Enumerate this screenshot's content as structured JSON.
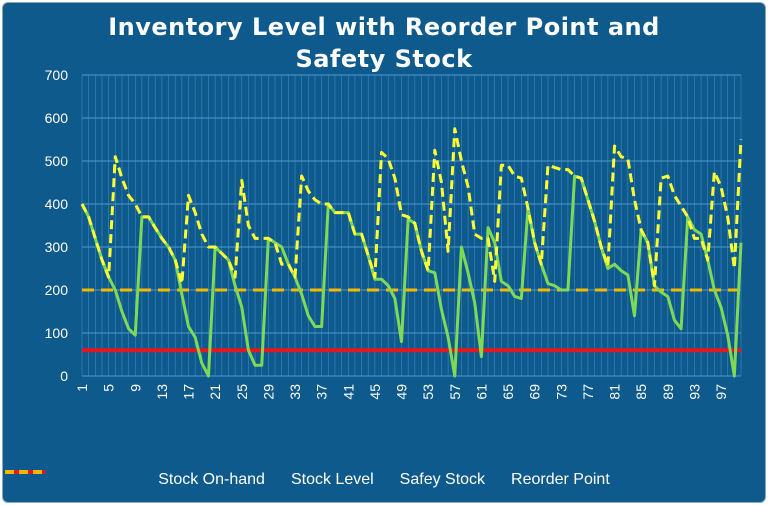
{
  "chart_data": {
    "type": "line",
    "title": [
      "Inventory Level with Reorder Point and",
      "Safety Stock"
    ],
    "xlabel": "",
    "ylabel": "",
    "ylim": [
      0,
      700
    ],
    "yticks": [
      0,
      100,
      200,
      300,
      400,
      500,
      600,
      700
    ],
    "xlim": [
      1,
      100
    ],
    "xtick_labels": [
      "1",
      "5",
      "9",
      "13",
      "17",
      "21",
      "25",
      "29",
      "33",
      "37",
      "41",
      "45",
      "49",
      "53",
      "57",
      "61",
      "65",
      "69",
      "73",
      "77",
      "81",
      "85",
      "89",
      "93",
      "97"
    ],
    "grid": true,
    "legend_position": "bottom",
    "series": [
      {
        "name": "Stock On-hand",
        "style": "solid",
        "color": "#7ed957",
        "x": [
          1,
          2,
          3,
          4,
          5,
          6,
          7,
          8,
          9,
          10,
          11,
          12,
          13,
          14,
          15,
          16,
          17,
          18,
          19,
          20,
          21,
          22,
          23,
          24,
          25,
          26,
          27,
          28,
          29,
          30,
          31,
          32,
          33,
          34,
          35,
          36,
          37,
          38,
          39,
          40,
          41,
          42,
          43,
          44,
          45,
          46,
          47,
          48,
          49,
          50,
          51,
          52,
          53,
          54,
          55,
          56,
          57,
          58,
          59,
          60,
          61,
          62,
          63,
          64,
          65,
          66,
          67,
          68,
          69,
          70,
          71,
          72,
          73,
          74,
          75,
          76,
          77,
          78,
          79,
          80,
          81,
          82,
          83,
          84,
          85,
          86,
          87,
          88,
          89,
          90,
          91,
          92,
          93,
          94,
          95,
          96,
          97,
          98,
          99,
          100
        ],
        "values": [
          400,
          370,
          320,
          270,
          230,
          200,
          150,
          110,
          95,
          370,
          370,
          345,
          320,
          300,
          270,
          190,
          115,
          90,
          30,
          0,
          300,
          285,
          270,
          210,
          160,
          60,
          25,
          25,
          320,
          310,
          300,
          260,
          230,
          190,
          140,
          115,
          115,
          400,
          380,
          380,
          380,
          330,
          330,
          280,
          225,
          225,
          210,
          180,
          80,
          365,
          355,
          290,
          245,
          240,
          155,
          90,
          0,
          300,
          240,
          170,
          45,
          345,
          310,
          220,
          210,
          185,
          180,
          390,
          310,
          260,
          215,
          210,
          200,
          200,
          465,
          460,
          410,
          360,
          300,
          250,
          260,
          245,
          235,
          140,
          340,
          310,
          210,
          195,
          185,
          130,
          110,
          370,
          340,
          330,
          270,
          200,
          160,
          95,
          0,
          310
        ]
      },
      {
        "name": "Stock Level",
        "style": "dashed",
        "color": "#ffff33",
        "x": [
          1,
          2,
          3,
          4,
          5,
          6,
          7,
          8,
          9,
          10,
          11,
          12,
          13,
          14,
          15,
          16,
          17,
          18,
          19,
          20,
          21,
          22,
          23,
          24,
          25,
          26,
          27,
          28,
          29,
          30,
          31,
          32,
          33,
          34,
          35,
          36,
          37,
          38,
          39,
          40,
          41,
          42,
          43,
          44,
          45,
          46,
          47,
          48,
          49,
          50,
          51,
          52,
          53,
          54,
          55,
          56,
          57,
          58,
          59,
          60,
          61,
          62,
          63,
          64,
          65,
          66,
          67,
          68,
          69,
          70,
          71,
          72,
          73,
          74,
          75,
          76,
          77,
          78,
          79,
          80,
          81,
          82,
          83,
          84,
          85,
          86,
          87,
          88,
          89,
          90,
          91,
          92,
          93,
          94,
          95,
          96,
          97,
          98,
          99,
          100
        ],
        "values": [
          400,
          370,
          320,
          270,
          230,
          510,
          460,
          420,
          400,
          370,
          370,
          345,
          320,
          300,
          270,
          215,
          420,
          380,
          330,
          300,
          300,
          285,
          270,
          230,
          455,
          350,
          320,
          320,
          320,
          310,
          260,
          260,
          230,
          465,
          430,
          410,
          400,
          400,
          380,
          380,
          380,
          330,
          330,
          280,
          230,
          520,
          505,
          460,
          375,
          370,
          355,
          290,
          245,
          525,
          450,
          290,
          575,
          500,
          440,
          330,
          320,
          320,
          220,
          490,
          490,
          465,
          460,
          390,
          310,
          260,
          490,
          485,
          480,
          480,
          465,
          460,
          410,
          360,
          300,
          255,
          535,
          510,
          505,
          410,
          340,
          310,
          210,
          460,
          465,
          420,
          395,
          370,
          320,
          320,
          270,
          475,
          440,
          370,
          250,
          550
        ]
      },
      {
        "name": "Safey Stock",
        "style": "solid",
        "color": "#e8141e",
        "x": [
          1,
          100
        ],
        "values": [
          60,
          60
        ]
      },
      {
        "name": "Reorder Point",
        "style": "dashed",
        "color": "#f5b800",
        "x": [
          1,
          100
        ],
        "values": [
          200,
          200
        ]
      }
    ]
  },
  "colors": {
    "background": "#0f5a8c",
    "grid": "#4e9ad0",
    "axis_text": "#ffffff"
  }
}
